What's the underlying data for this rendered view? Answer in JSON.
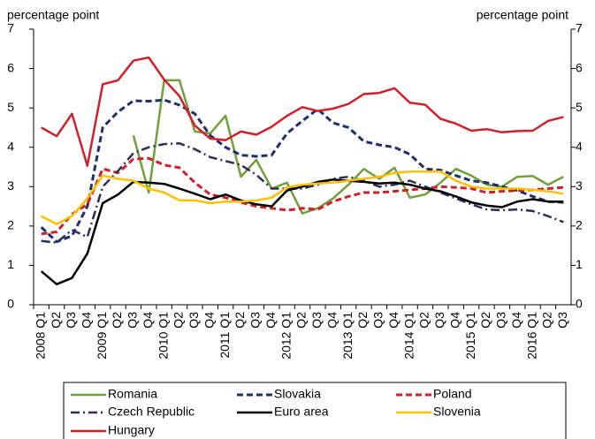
{
  "chart_data": {
    "type": "line",
    "ylabel": "percentage point",
    "y2label": "percentage point",
    "categories": [
      "2008 Q1",
      "Q2",
      "Q3",
      "Q4",
      "2009 Q1",
      "Q2",
      "Q3",
      "Q4",
      "2010 Q1",
      "Q2",
      "Q3",
      "Q4",
      "2011 Q1",
      "Q2",
      "Q3",
      "Q4",
      "2012 Q1",
      "Q2",
      "Q3",
      "Q4",
      "2013 Q1",
      "Q2",
      "Q3",
      "Q4",
      "2014 Q1",
      "Q2",
      "Q3",
      "Q4",
      "2015 Q1",
      "Q2",
      "Q3",
      "Q4",
      "2016 Q1",
      "Q2",
      "Q3"
    ],
    "ylim": [
      0,
      7
    ],
    "yticks": [
      0,
      1,
      2,
      3,
      4,
      5,
      6,
      7
    ],
    "y2lim": [
      0,
      7
    ],
    "y2ticks": [
      0,
      1,
      2,
      3,
      4,
      5,
      6,
      7
    ],
    "series": [
      {
        "name": "Romania",
        "color": "#70a03c",
        "dash": "solid",
        "values": [
          null,
          null,
          null,
          null,
          null,
          null,
          4.3,
          2.85,
          5.7,
          5.7,
          4.4,
          4.35,
          4.8,
          3.25,
          3.68,
          2.95,
          3.1,
          2.32,
          2.45,
          2.7,
          3.05,
          3.45,
          3.2,
          3.48,
          2.72,
          2.8,
          3.1,
          3.45,
          3.28,
          3.05,
          3.0,
          3.25,
          3.27,
          3.05,
          3.25
        ]
      },
      {
        "name": "Slovakia",
        "color": "#1f2f6e",
        "dash": "dash",
        "values": [
          1.97,
          1.6,
          1.75,
          2.5,
          4.5,
          4.9,
          5.18,
          5.17,
          5.2,
          5.07,
          4.85,
          4.3,
          4.0,
          3.8,
          3.77,
          3.8,
          4.35,
          4.67,
          4.97,
          4.62,
          4.5,
          4.15,
          4.06,
          4.0,
          3.82,
          3.45,
          3.42,
          3.28,
          3.15,
          3.1,
          3.0,
          2.9,
          2.75,
          2.62,
          2.6
        ]
      },
      {
        "name": "Poland",
        "color": "#d0202a",
        "dash": "dash",
        "values": [
          1.8,
          1.85,
          2.3,
          2.55,
          3.45,
          3.35,
          3.7,
          3.72,
          3.55,
          3.48,
          3.1,
          2.8,
          2.72,
          2.6,
          2.5,
          2.45,
          2.4,
          2.45,
          2.42,
          2.62,
          2.75,
          2.85,
          2.85,
          2.88,
          2.92,
          2.95,
          3.0,
          2.98,
          2.95,
          2.85,
          2.88,
          2.9,
          2.92,
          2.95,
          2.98
        ]
      },
      {
        "name": "Czech Republic",
        "color": "#2e2e5e",
        "dash": "dashdot",
        "values": [
          1.62,
          1.58,
          1.9,
          1.72,
          3.0,
          3.4,
          3.85,
          4.0,
          4.08,
          4.1,
          3.95,
          3.75,
          3.65,
          3.55,
          3.3,
          2.95,
          2.95,
          2.95,
          3.05,
          3.2,
          3.25,
          3.15,
          3.0,
          3.05,
          3.15,
          3.0,
          2.85,
          2.7,
          2.55,
          2.42,
          2.4,
          2.42,
          2.38,
          2.25,
          2.1
        ]
      },
      {
        "name": "Euro area",
        "color": "#000000",
        "dash": "solid",
        "values": [
          0.85,
          0.52,
          0.68,
          1.3,
          2.58,
          2.8,
          3.12,
          3.1,
          3.07,
          2.95,
          2.82,
          2.68,
          2.8,
          2.65,
          2.55,
          2.5,
          2.9,
          3.0,
          3.12,
          3.18,
          3.15,
          3.12,
          3.08,
          3.1,
          3.05,
          2.95,
          2.88,
          2.75,
          2.6,
          2.52,
          2.48,
          2.62,
          2.68,
          2.62,
          2.62
        ]
      },
      {
        "name": "Slovenia",
        "color": "#ffc000",
        "dash": "solid",
        "values": [
          2.25,
          2.05,
          2.25,
          2.7,
          3.28,
          3.2,
          3.15,
          2.95,
          2.85,
          2.65,
          2.65,
          2.58,
          2.62,
          2.62,
          2.65,
          2.72,
          2.98,
          3.05,
          3.08,
          3.1,
          3.15,
          3.2,
          3.25,
          3.35,
          3.38,
          3.38,
          3.38,
          3.15,
          3.0,
          2.95,
          2.95,
          2.95,
          2.92,
          2.88,
          2.82
        ]
      },
      {
        "name": "Hungary",
        "color": "#d0202a",
        "dash": "solid",
        "values": [
          4.5,
          4.28,
          4.85,
          3.53,
          5.6,
          5.7,
          6.2,
          6.28,
          5.72,
          5.3,
          4.55,
          4.22,
          4.18,
          4.4,
          4.32,
          4.52,
          4.8,
          5.02,
          4.92,
          4.98,
          5.1,
          5.35,
          5.38,
          5.5,
          5.13,
          5.08,
          4.72,
          4.6,
          4.42,
          4.46,
          4.38,
          4.41,
          4.42,
          4.67,
          4.77
        ]
      }
    ]
  }
}
